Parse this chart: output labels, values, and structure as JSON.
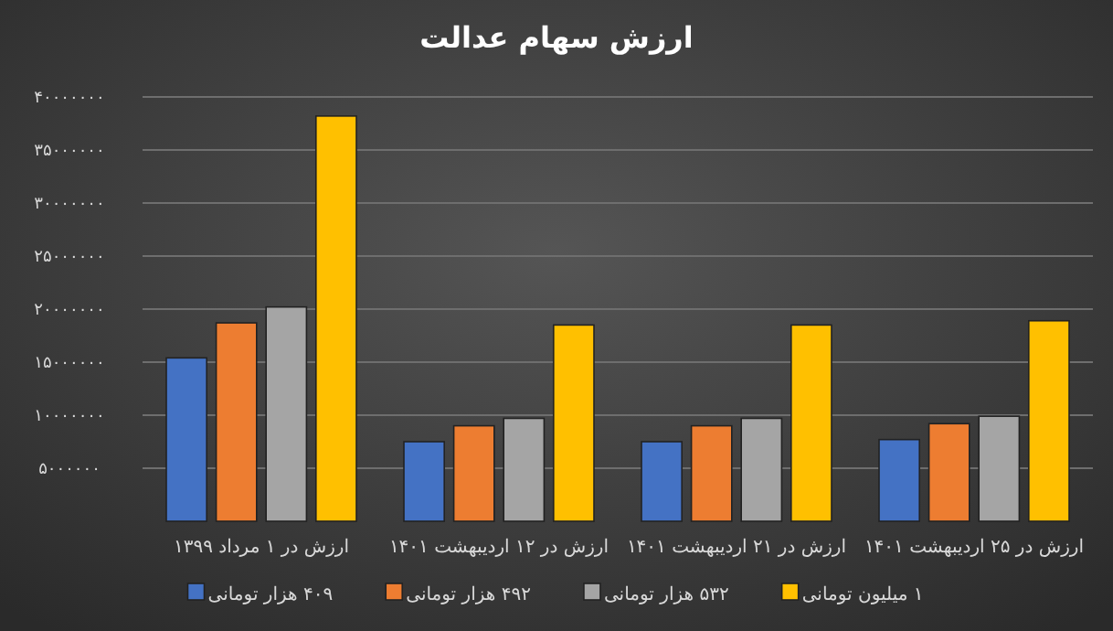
{
  "chart_data": {
    "type": "bar",
    "title": "ارزش سهام عدالت",
    "categories": [
      "ارزش در ۱ مرداد ۱۳۹۹",
      "ارزش در ۱۲ اردیبهشت ۱۴۰۱",
      "ارزش در ۲۱ اردیبهشت ۱۴۰۱",
      "ارزش در ۲۵ اردیبهشت ۱۴۰۱"
    ],
    "series": [
      {
        "name": "۴۰۹ هزار تومانی",
        "color": "#4472c4",
        "values": [
          15400000,
          7500000,
          7500000,
          7700000
        ]
      },
      {
        "name": "۴۹۲ هزار تومانی",
        "color": "#ed7d31",
        "values": [
          18700000,
          9000000,
          9000000,
          9200000
        ]
      },
      {
        "name": "۵۳۲ هزار تومانی",
        "color": "#a5a5a5",
        "values": [
          20200000,
          9700000,
          9700000,
          9900000
        ]
      },
      {
        "name": "۱ میلیون تومانی",
        "color": "#ffc000",
        "values": [
          38200000,
          18500000,
          18500000,
          18900000
        ]
      }
    ],
    "ylim": [
      0,
      40000000
    ],
    "yticks": [
      {
        "value": 5000000,
        "label": "۵۰۰۰۰۰۰"
      },
      {
        "value": 10000000,
        "label": "۱۰۰۰۰۰۰۰"
      },
      {
        "value": 15000000,
        "label": "۱۵۰۰۰۰۰۰"
      },
      {
        "value": 20000000,
        "label": "۲۰۰۰۰۰۰۰"
      },
      {
        "value": 25000000,
        "label": "۲۵۰۰۰۰۰۰"
      },
      {
        "value": 30000000,
        "label": "۳۰۰۰۰۰۰۰"
      },
      {
        "value": 35000000,
        "label": "۳۵۰۰۰۰۰۰"
      },
      {
        "value": 40000000,
        "label": "۴۰۰۰۰۰۰۰"
      }
    ],
    "grid": "y",
    "legend": "bottom"
  }
}
